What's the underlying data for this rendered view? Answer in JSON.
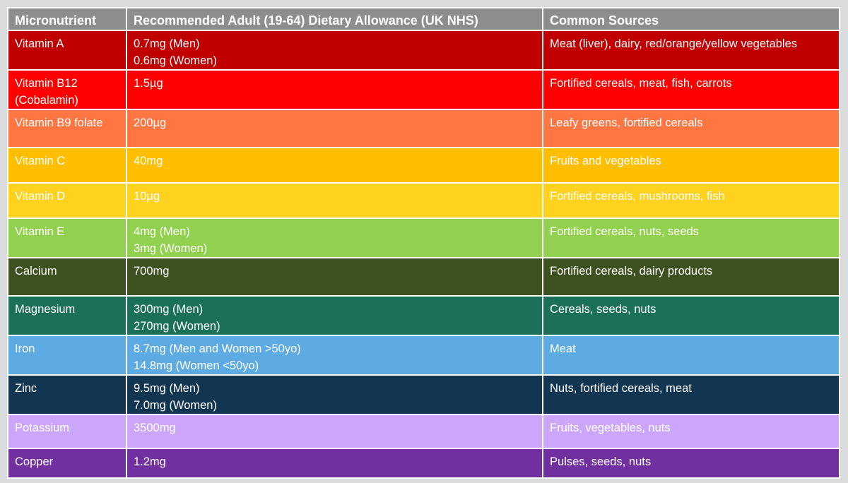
{
  "headers": {
    "micronutrient": "Micronutrient",
    "allowance": "Recommended Adult (19-64) Dietary Allowance (UK NHS)",
    "sources": "Common Sources"
  },
  "header_color": "#8d8d8d",
  "rows": [
    {
      "name": [
        "Vitamin A"
      ],
      "allowance": [
        "0.7mg (Men)",
        "0.6mg (Women)"
      ],
      "sources": "Meat (liver), dairy, red/orange/yellow vegetables",
      "color": "#c00000"
    },
    {
      "name": [
        "Vitamin B12",
        "(Cobalamin)"
      ],
      "allowance": [
        "1.5µg"
      ],
      "sources": "Fortified cereals, meat, fish, carrots",
      "color": "#ff0000"
    },
    {
      "name": [
        "Vitamin B9 folate"
      ],
      "allowance": [
        "200µg"
      ],
      "sources": "Leafy greens, fortified cereals",
      "color": "#ff7642"
    },
    {
      "name": [
        "Vitamin C"
      ],
      "allowance": [
        "40mg"
      ],
      "sources": "Fruits and vegetables",
      "color": "#ffbf00"
    },
    {
      "name": [
        "Vitamin D"
      ],
      "allowance": [
        "10µg"
      ],
      "sources": "Fortified cereals, mushrooms, fish",
      "color": "#ffd21f"
    },
    {
      "name": [
        "Vitamin E"
      ],
      "allowance": [
        "4mg (Men)",
        "3mg (Women)"
      ],
      "sources": "Fortified cereals, nuts, seeds",
      "color": "#92d050"
    },
    {
      "name": [
        "Calcium"
      ],
      "allowance": [
        "700mg"
      ],
      "sources": "Fortified cereals, dairy products",
      "color": "#3e5120"
    },
    {
      "name": [
        "Magnesium"
      ],
      "allowance": [
        "300mg (Men)",
        "270mg (Women)"
      ],
      "sources": "Cereals, seeds, nuts",
      "color": "#1b7059"
    },
    {
      "name": [
        "Iron"
      ],
      "allowance": [
        "8.7mg (Men and Women >50yo)",
        "14.8mg (Women <50yo)"
      ],
      "sources": "Meat",
      "color": "#5eabe3"
    },
    {
      "name": [
        "Zinc"
      ],
      "allowance": [
        "9.5mg (Men)",
        "7.0mg (Women)"
      ],
      "sources": "Nuts, fortified cereals, meat",
      "color": "#123552"
    },
    {
      "name": [
        "Potassium"
      ],
      "allowance": [
        "3500mg"
      ],
      "sources": "Fruits, vegetables, nuts",
      "color": "#cca6fb"
    },
    {
      "name": [
        "Copper"
      ],
      "allowance": [
        "1.2mg"
      ],
      "sources": "Pulses, seeds, nuts",
      "color": "#7030a0"
    }
  ]
}
